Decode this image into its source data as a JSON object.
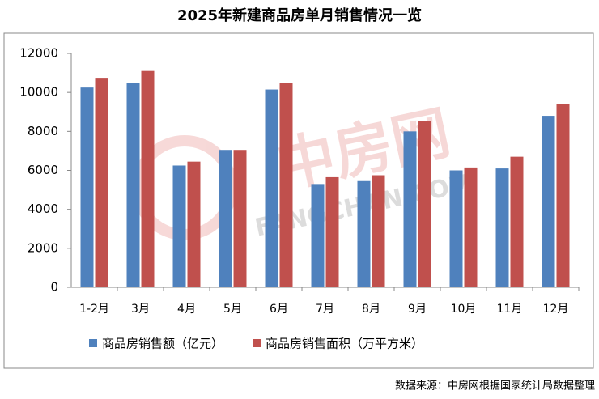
{
  "chart_data": {
    "type": "bar",
    "title": "2025年新建商品房单月销售情况一览",
    "categories": [
      "1-2月",
      "3月",
      "4月",
      "5月",
      "6月",
      "7月",
      "8月",
      "9月",
      "10月",
      "11月",
      "12月"
    ],
    "series": [
      {
        "name": "商品房销售额（亿元）",
        "color": "#4f81bd",
        "values": [
          10250,
          10500,
          6250,
          7050,
          10150,
          5300,
          5450,
          8000,
          6000,
          6100,
          8800
        ]
      },
      {
        "name": "商品房销售面积（万平方米）",
        "color": "#c0504d",
        "values": [
          10750,
          11100,
          6450,
          7050,
          10500,
          5650,
          5750,
          8550,
          6150,
          6700,
          9400
        ]
      }
    ],
    "ylim": [
      0,
      12000
    ],
    "yticks": [
      0,
      2000,
      4000,
      6000,
      8000,
      10000,
      12000
    ],
    "source": "数据来源：中房网根据国家统计局数据整理",
    "watermark": [
      "中房网",
      "FANGCHAN.COM"
    ]
  }
}
